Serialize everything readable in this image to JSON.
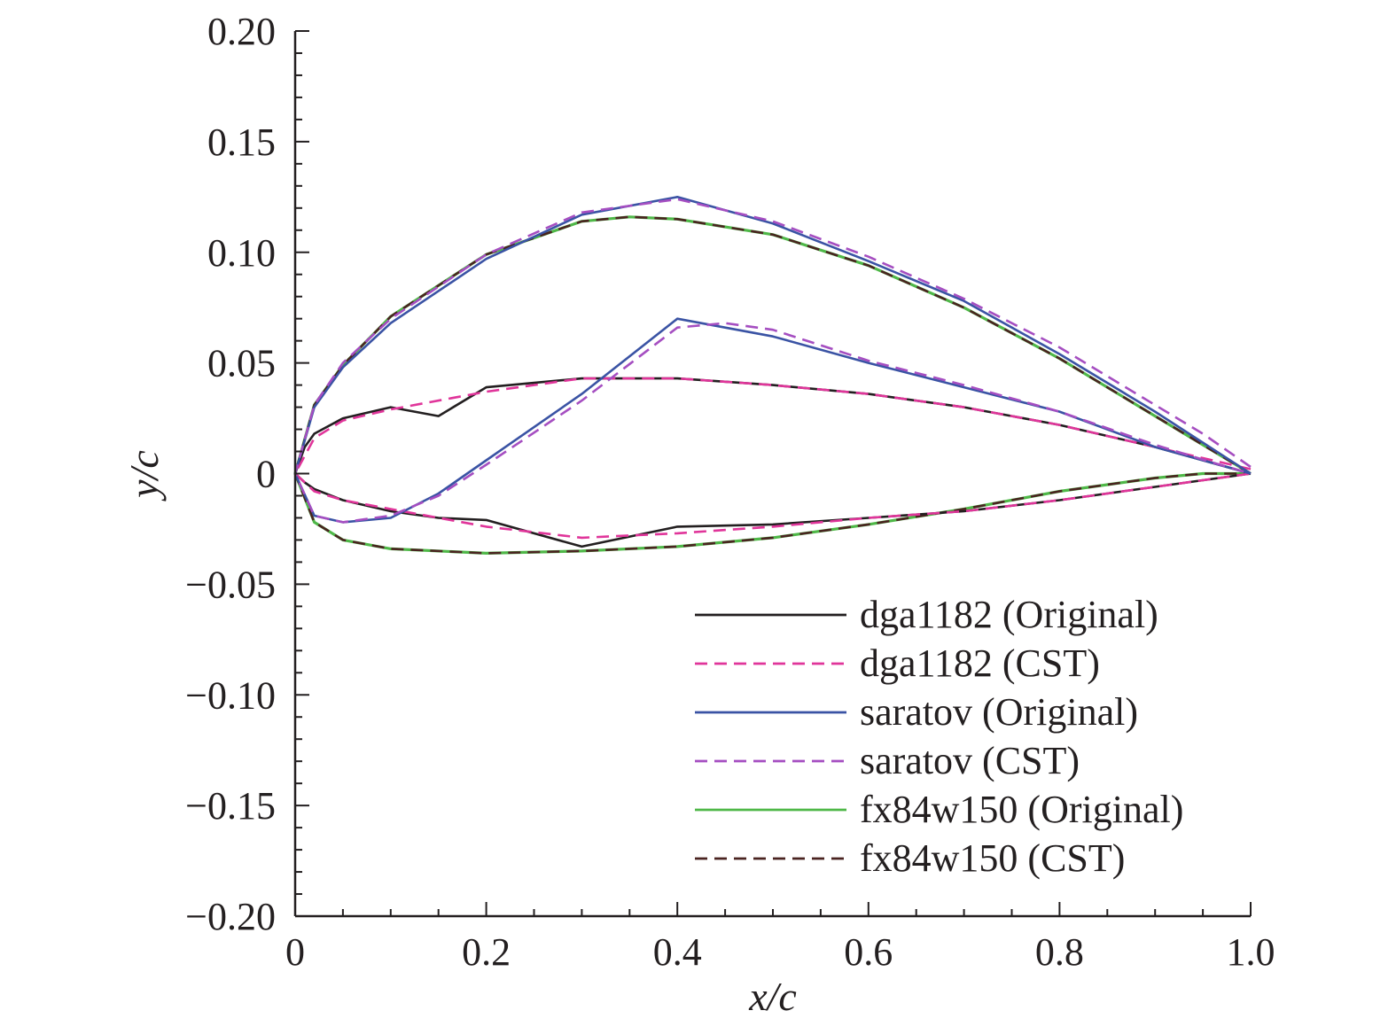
{
  "chart_data": {
    "type": "line",
    "title": "",
    "xlabel": "x/c",
    "ylabel": "y/c",
    "xlim": [
      0,
      1.0
    ],
    "ylim": [
      -0.2,
      0.2
    ],
    "x_ticks": [
      {
        "v": 0,
        "label": "0"
      },
      {
        "v": 0.2,
        "label": "0.2"
      },
      {
        "v": 0.4,
        "label": "0.4"
      },
      {
        "v": 0.6,
        "label": "0.6"
      },
      {
        "v": 0.8,
        "label": "0.8"
      },
      {
        "v": 1.0,
        "label": "1.0"
      }
    ],
    "y_ticks": [
      {
        "v": 0.2,
        "label": "0.20"
      },
      {
        "v": 0.15,
        "label": "0.15"
      },
      {
        "v": 0.1,
        "label": "0.10"
      },
      {
        "v": 0.05,
        "label": "0.05"
      },
      {
        "v": 0,
        "label": "0"
      },
      {
        "v": -0.05,
        "label": "−0.05"
      },
      {
        "v": -0.1,
        "label": "−0.10"
      },
      {
        "v": -0.15,
        "label": "−0.15"
      },
      {
        "v": -0.2,
        "label": "−0.20"
      }
    ],
    "legend_position": "bottom-right",
    "grid": false,
    "series": [
      {
        "name": "dga1182 (Original)",
        "color": "#231f20",
        "dash": "solid",
        "x": [
          1.0,
          0.9,
          0.8,
          0.7,
          0.6,
          0.5,
          0.4,
          0.3,
          0.2,
          0.15,
          0.1,
          0.05,
          0.02,
          0.01,
          0.0,
          0.01,
          0.02,
          0.05,
          0.1,
          0.15,
          0.2,
          0.3,
          0.4,
          0.5,
          0.6,
          0.7,
          0.8,
          0.9,
          1.0
        ],
        "y": [
          0.0,
          0.012,
          0.022,
          0.03,
          0.036,
          0.04,
          0.043,
          0.043,
          0.039,
          0.026,
          0.03,
          0.025,
          0.018,
          0.012,
          0.0,
          -0.004,
          -0.007,
          -0.012,
          -0.017,
          -0.02,
          -0.021,
          -0.033,
          -0.024,
          -0.023,
          -0.02,
          -0.017,
          -0.012,
          -0.006,
          0.0
        ]
      },
      {
        "name": "dga1182 (CST)",
        "color": "#e0359a",
        "dash": "dashed",
        "x": [
          1.0,
          0.9,
          0.8,
          0.7,
          0.6,
          0.5,
          0.4,
          0.3,
          0.2,
          0.1,
          0.05,
          0.02,
          0.0,
          0.02,
          0.05,
          0.1,
          0.2,
          0.3,
          0.4,
          0.5,
          0.6,
          0.7,
          0.8,
          0.9,
          1.0
        ],
        "y": [
          0.002,
          0.012,
          0.022,
          0.03,
          0.036,
          0.04,
          0.043,
          0.043,
          0.037,
          0.029,
          0.024,
          0.016,
          0.0,
          -0.008,
          -0.012,
          -0.016,
          -0.024,
          -0.029,
          -0.027,
          -0.024,
          -0.02,
          -0.017,
          -0.012,
          -0.006,
          0.0
        ]
      },
      {
        "name": "saratov (Original)",
        "color": "#3a53a4",
        "dash": "solid",
        "x": [
          1.0,
          0.9,
          0.8,
          0.7,
          0.6,
          0.5,
          0.4,
          0.3,
          0.2,
          0.1,
          0.05,
          0.02,
          0.0,
          0.02,
          0.05,
          0.1,
          0.15,
          0.2,
          0.3,
          0.4,
          0.5,
          0.6,
          0.7,
          0.8,
          0.9,
          1.0
        ],
        "y": [
          0.0,
          0.028,
          0.054,
          0.078,
          0.096,
          0.113,
          0.125,
          0.117,
          0.097,
          0.068,
          0.048,
          0.03,
          0.0,
          -0.019,
          -0.022,
          -0.02,
          -0.009,
          0.006,
          0.036,
          0.07,
          0.062,
          0.05,
          0.039,
          0.028,
          0.012,
          0.0
        ]
      },
      {
        "name": "saratov (CST)",
        "color": "#a54ec1",
        "dash": "dashed",
        "x": [
          1.0,
          0.95,
          0.9,
          0.8,
          0.7,
          0.6,
          0.5,
          0.4,
          0.3,
          0.2,
          0.1,
          0.05,
          0.02,
          0.0,
          0.02,
          0.05,
          0.1,
          0.15,
          0.2,
          0.3,
          0.4,
          0.45,
          0.5,
          0.6,
          0.7,
          0.8,
          0.9,
          0.96,
          1.0
        ],
        "y": [
          0.003,
          0.018,
          0.031,
          0.057,
          0.079,
          0.098,
          0.114,
          0.124,
          0.118,
          0.099,
          0.07,
          0.05,
          0.031,
          0.0,
          -0.019,
          -0.022,
          -0.019,
          -0.01,
          0.004,
          0.033,
          0.066,
          0.068,
          0.065,
          0.051,
          0.04,
          0.028,
          0.013,
          0.005,
          0.0
        ]
      },
      {
        "name": "fx84w150 (Original)",
        "color": "#4fb848",
        "dash": "solid",
        "x": [
          1.0,
          0.9,
          0.8,
          0.7,
          0.6,
          0.5,
          0.4,
          0.35,
          0.3,
          0.2,
          0.1,
          0.05,
          0.02,
          0.0,
          0.02,
          0.05,
          0.1,
          0.2,
          0.3,
          0.4,
          0.5,
          0.6,
          0.7,
          0.8,
          0.9,
          0.95,
          1.0
        ],
        "y": [
          0.0,
          0.026,
          0.052,
          0.075,
          0.094,
          0.108,
          0.115,
          0.116,
          0.114,
          0.099,
          0.071,
          0.049,
          0.031,
          0.0,
          -0.022,
          -0.03,
          -0.034,
          -0.036,
          -0.035,
          -0.033,
          -0.029,
          -0.023,
          -0.016,
          -0.008,
          -0.002,
          0.0,
          0.0
        ]
      },
      {
        "name": "fx84w150 (CST)",
        "color": "#4a2320",
        "dash": "dashed",
        "x": [
          1.0,
          0.9,
          0.8,
          0.7,
          0.6,
          0.5,
          0.4,
          0.35,
          0.3,
          0.2,
          0.1,
          0.05,
          0.02,
          0.0,
          0.02,
          0.05,
          0.1,
          0.2,
          0.3,
          0.4,
          0.5,
          0.6,
          0.7,
          0.8,
          0.9,
          0.95,
          1.0
        ],
        "y": [
          0.0,
          0.026,
          0.052,
          0.075,
          0.094,
          0.108,
          0.115,
          0.116,
          0.114,
          0.099,
          0.071,
          0.049,
          0.031,
          0.0,
          -0.022,
          -0.03,
          -0.034,
          -0.036,
          -0.035,
          -0.033,
          -0.029,
          -0.023,
          -0.016,
          -0.008,
          -0.002,
          0.0,
          0.0
        ]
      }
    ]
  }
}
